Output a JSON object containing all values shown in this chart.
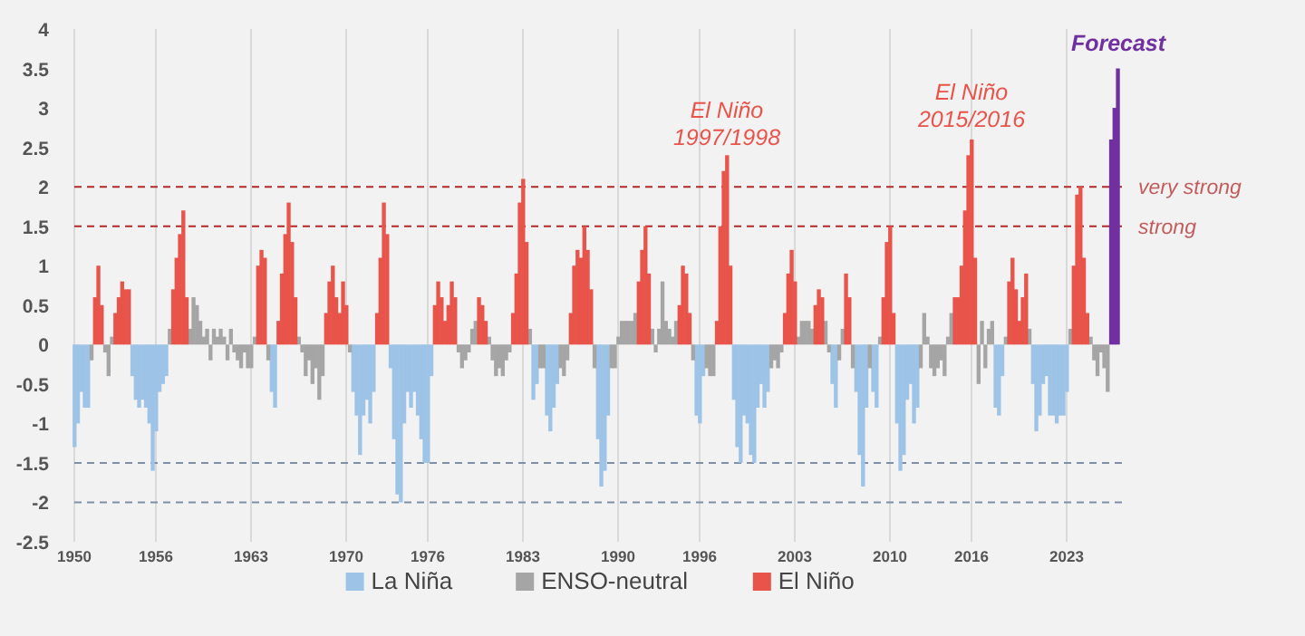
{
  "chart_data": {
    "type": "bar",
    "xlim": [
      1950,
      2027.2
    ],
    "ylim": [
      -2.5,
      4
    ],
    "xticks": [
      1950,
      1956,
      1963,
      1970,
      1976,
      1983,
      1990,
      1996,
      2003,
      2010,
      2016,
      2023
    ],
    "yticks": [
      -2.5,
      -2,
      -1.5,
      -1,
      -0.5,
      0,
      0.5,
      1,
      1.5,
      2,
      2.5,
      3,
      3.5,
      4
    ],
    "grid": "x",
    "legend": "bottom",
    "series": [
      {
        "name": "La Niña",
        "color": "#9dc3e6",
        "x": [
          1950,
          1950.25,
          1950.5,
          1950.75,
          1951,
          1954.25,
          1954.5,
          1954.75,
          1955,
          1955.25,
          1955.5,
          1955.75,
          1956,
          1956.25,
          1956.5,
          1956.75,
          1964.5,
          1964.75,
          1970.5,
          1970.75,
          1971,
          1971.25,
          1971.5,
          1971.75,
          1972,
          1973.25,
          1973.5,
          1973.75,
          1974,
          1974.25,
          1974.5,
          1974.75,
          1975,
          1975.25,
          1975.5,
          1975.75,
          1976,
          1976.25,
          1983.75,
          1984,
          1984.75,
          1985,
          1985.25,
          1985.5,
          1988.5,
          1988.75,
          1989,
          1989.25,
          1995.75,
          1996,
          1996.25,
          1998.5,
          1998.75,
          1999,
          1999.25,
          1999.5,
          1999.75,
          2000,
          2000.25,
          2000.5,
          2000.75,
          2001,
          2005.75,
          2006,
          2007.5,
          2007.75,
          2008,
          2008.25,
          2008.75,
          2009,
          2010.5,
          2010.75,
          2011,
          2011.25,
          2011.5,
          2011.75,
          2012,
          2017.75,
          2018,
          2018.25,
          2020.5,
          2020.75,
          2021,
          2021.25,
          2021.5,
          2021.75,
          2022,
          2022.25,
          2022.5,
          2022.75,
          2023
        ],
        "values": [
          -1.3,
          -1.0,
          -0.6,
          -0.8,
          -0.8,
          -0.4,
          -0.7,
          -0.8,
          -0.7,
          -0.8,
          -1.0,
          -1.6,
          -1.1,
          -0.6,
          -0.5,
          -0.4,
          -0.6,
          -0.8,
          -0.6,
          -0.9,
          -1.4,
          -0.9,
          -0.7,
          -1.0,
          -0.6,
          -0.3,
          -1.2,
          -1.9,
          -2.0,
          -1.0,
          -0.6,
          -0.8,
          -0.6,
          -0.9,
          -1.2,
          -1.5,
          -1.5,
          -0.4,
          -0.7,
          -0.5,
          -0.9,
          -1.1,
          -0.8,
          -0.5,
          -1.2,
          -1.8,
          -1.6,
          -0.9,
          -0.9,
          -1.0,
          -0.4,
          -0.7,
          -1.3,
          -1.5,
          -0.9,
          -1.0,
          -1.4,
          -1.5,
          -0.8,
          -0.5,
          -0.8,
          -0.6,
          -0.5,
          -0.8,
          -0.6,
          -1.4,
          -1.8,
          -0.8,
          -0.6,
          -0.8,
          -1.0,
          -1.6,
          -1.4,
          -0.7,
          -0.5,
          -1.0,
          -0.8,
          -0.8,
          -0.9,
          -0.4,
          -0.5,
          -1.1,
          -0.9,
          -0.5,
          -0.4,
          -0.9,
          -0.9,
          -1.0,
          -0.9,
          -0.9,
          -0.6
        ]
      },
      {
        "name": "ENSO-neutral",
        "color": "#a5a5a5",
        "x": [
          1951.25,
          1952.25,
          1952.5,
          1952.75,
          1957,
          1958.5,
          1958.75,
          1959,
          1959.25,
          1959.5,
          1959.75,
          1960,
          1960.25,
          1960.5,
          1960.75,
          1961,
          1961.25,
          1961.5,
          1961.75,
          1962,
          1962.25,
          1962.5,
          1962.75,
          1963,
          1963.25,
          1964.25,
          1966.5,
          1966.75,
          1967,
          1967.25,
          1967.5,
          1967.75,
          1968,
          1968.25,
          1970.25,
          1978.25,
          1978.5,
          1978.75,
          1979,
          1979.25,
          1979.5,
          1980.5,
          1980.75,
          1981,
          1981.25,
          1981.5,
          1981.75,
          1982,
          1983.5,
          1984.25,
          1984.5,
          1985.75,
          1986,
          1986.25,
          1988.25,
          1989.5,
          1989.75,
          1990,
          1990.25,
          1990.5,
          1990.75,
          1991,
          1991.25,
          1992.5,
          1992.75,
          1993,
          1993.25,
          1993.5,
          1993.75,
          1994,
          1994.25,
          1995.5,
          1996.5,
          1996.75,
          1997,
          2001.25,
          2001.5,
          2001.75,
          2002,
          2003.25,
          2003.5,
          2003.75,
          2004,
          2004.25,
          2005.25,
          2005.5,
          2006.25,
          2006.5,
          2007.25,
          2008.5,
          2009.25,
          2012.25,
          2012.5,
          2012.75,
          2013,
          2013.25,
          2013.5,
          2013.75,
          2014,
          2014.25,
          2014.5,
          2016.5,
          2016.75,
          2017,
          2017.25,
          2017.5,
          2018.5,
          2020.25,
          2023.25,
          2024.75,
          2025,
          2025.25,
          2025.5,
          2025.75,
          2026
        ],
        "values": [
          -0.2,
          -0.1,
          -0.4,
          0.1,
          0.2,
          0.2,
          0.6,
          0.5,
          0.3,
          0.1,
          0.2,
          -0.2,
          0.2,
          0.1,
          0.2,
          0.1,
          -0.2,
          0.2,
          -0.1,
          -0.2,
          -0.3,
          -0.1,
          -0.3,
          -0.3,
          0.1,
          -0.2,
          0.1,
          -0.1,
          -0.4,
          -0.2,
          -0.5,
          -0.3,
          -0.7,
          -0.4,
          -0.1,
          -0.1,
          -0.3,
          -0.2,
          -0.1,
          0.2,
          0.3,
          0.1,
          -0.2,
          -0.4,
          -0.3,
          -0.4,
          -0.2,
          -0.1,
          0.2,
          -0.3,
          -0.3,
          -0.3,
          -0.4,
          -0.2,
          -0.3,
          -0.3,
          -0.3,
          0.1,
          0.3,
          0.3,
          0.3,
          0.3,
          0.4,
          0.2,
          -0.1,
          0.2,
          0.8,
          0.3,
          0.2,
          0.1,
          0.3,
          -0.2,
          -0.3,
          -0.4,
          -0.4,
          -0.3,
          -0.2,
          -0.3,
          -0.1,
          0.1,
          0.3,
          0.3,
          0.3,
          0.2,
          0.3,
          -0.1,
          -0.2,
          0.2,
          -0.3,
          -0.3,
          0.1,
          -0.3,
          0.4,
          0.1,
          -0.3,
          -0.4,
          -0.3,
          -0.2,
          -0.4,
          0.1,
          0.4,
          -0.5,
          0.3,
          -0.3,
          0.2,
          0.3,
          0.1,
          0.2,
          0.2,
          0.1,
          -0.2,
          -0.4,
          -0.1,
          -0.3,
          -0.6
        ]
      },
      {
        "name": "El Niño",
        "color": "#e8534a",
        "x": [
          1951.5,
          1951.75,
          1952,
          1953,
          1953.25,
          1953.5,
          1953.75,
          1954,
          1957.25,
          1957.5,
          1957.75,
          1958,
          1958.25,
          1963.5,
          1963.75,
          1964,
          1965,
          1965.25,
          1965.5,
          1965.75,
          1966,
          1966.25,
          1968.5,
          1968.75,
          1969,
          1969.25,
          1969.5,
          1969.75,
          1970,
          1972.25,
          1972.5,
          1972.75,
          1973,
          1976.5,
          1976.75,
          1977,
          1977.25,
          1977.5,
          1977.75,
          1978,
          1979.75,
          1980,
          1980.25,
          1982.25,
          1982.5,
          1982.75,
          1983,
          1983.25,
          1986.5,
          1986.75,
          1987,
          1987.25,
          1987.5,
          1987.75,
          1988,
          1991.5,
          1991.75,
          1992,
          1992.25,
          1994.5,
          1994.75,
          1995,
          1995.25,
          1997.25,
          1997.5,
          1997.75,
          1998,
          1998.25,
          2002.25,
          2002.5,
          2002.75,
          2003,
          2004.5,
          2004.75,
          2005,
          2006.75,
          2007,
          2009.5,
          2009.75,
          2010,
          2010.25,
          2014.75,
          2015,
          2015.25,
          2015.5,
          2015.75,
          2016,
          2016.25,
          2018.75,
          2019,
          2019.25,
          2019.5,
          2019.75,
          2020,
          2023.5,
          2023.75,
          2024,
          2024.25,
          2024.5
        ],
        "values": [
          0.6,
          1.0,
          0.5,
          0.4,
          0.6,
          0.8,
          0.7,
          0.7,
          0.7,
          1.1,
          1.4,
          1.7,
          0.6,
          1.0,
          1.2,
          1.1,
          0.3,
          0.9,
          1.4,
          1.8,
          1.3,
          0.6,
          0.4,
          0.8,
          1.0,
          0.6,
          0.4,
          0.8,
          0.5,
          0.4,
          1.1,
          1.8,
          1.4,
          0.5,
          0.8,
          0.6,
          0.3,
          0.5,
          0.8,
          0.6,
          0.6,
          0.5,
          0.3,
          0.4,
          0.9,
          1.8,
          2.1,
          1.3,
          0.4,
          1.0,
          1.2,
          1.1,
          1.5,
          1.2,
          0.7,
          0.8,
          1.2,
          1.5,
          0.9,
          0.5,
          1.0,
          0.9,
          0.4,
          0.3,
          1.5,
          2.2,
          2.4,
          1.0,
          0.4,
          0.9,
          1.2,
          0.8,
          0.5,
          0.7,
          0.6,
          0.9,
          0.6,
          0.6,
          1.3,
          1.5,
          0.4,
          0.6,
          0.6,
          1.0,
          1.7,
          2.4,
          2.6,
          1.1,
          0.8,
          1.1,
          0.7,
          0.3,
          0.6,
          0.9,
          1.0,
          1.9,
          2.0,
          1.1,
          0.4
        ]
      },
      {
        "color": "#7030a0",
        "x": [
          2026.25,
          2026.5,
          2026.75
        ],
        "values": [
          2.6,
          3.0,
          3.5
        ]
      }
    ],
    "ref_lines": [
      {
        "axis": "y",
        "value": 2,
        "label": "very strong",
        "color": "#b22a2a",
        "line_style": "dashed"
      },
      {
        "axis": "y",
        "value": 1.5,
        "label": "strong",
        "color": "#b22a2a",
        "line_style": "dashed"
      },
      {
        "axis": "y",
        "value": -1.5,
        "color": "#7f8fa6",
        "line_style": "dashed"
      },
      {
        "axis": "y",
        "value": -2,
        "color": "#7f8fa6",
        "line_style": "dashed"
      }
    ],
    "annotations": [
      "El Niño\n1997/1998",
      "El Niño\n2015/2016",
      "Forecast"
    ]
  }
}
